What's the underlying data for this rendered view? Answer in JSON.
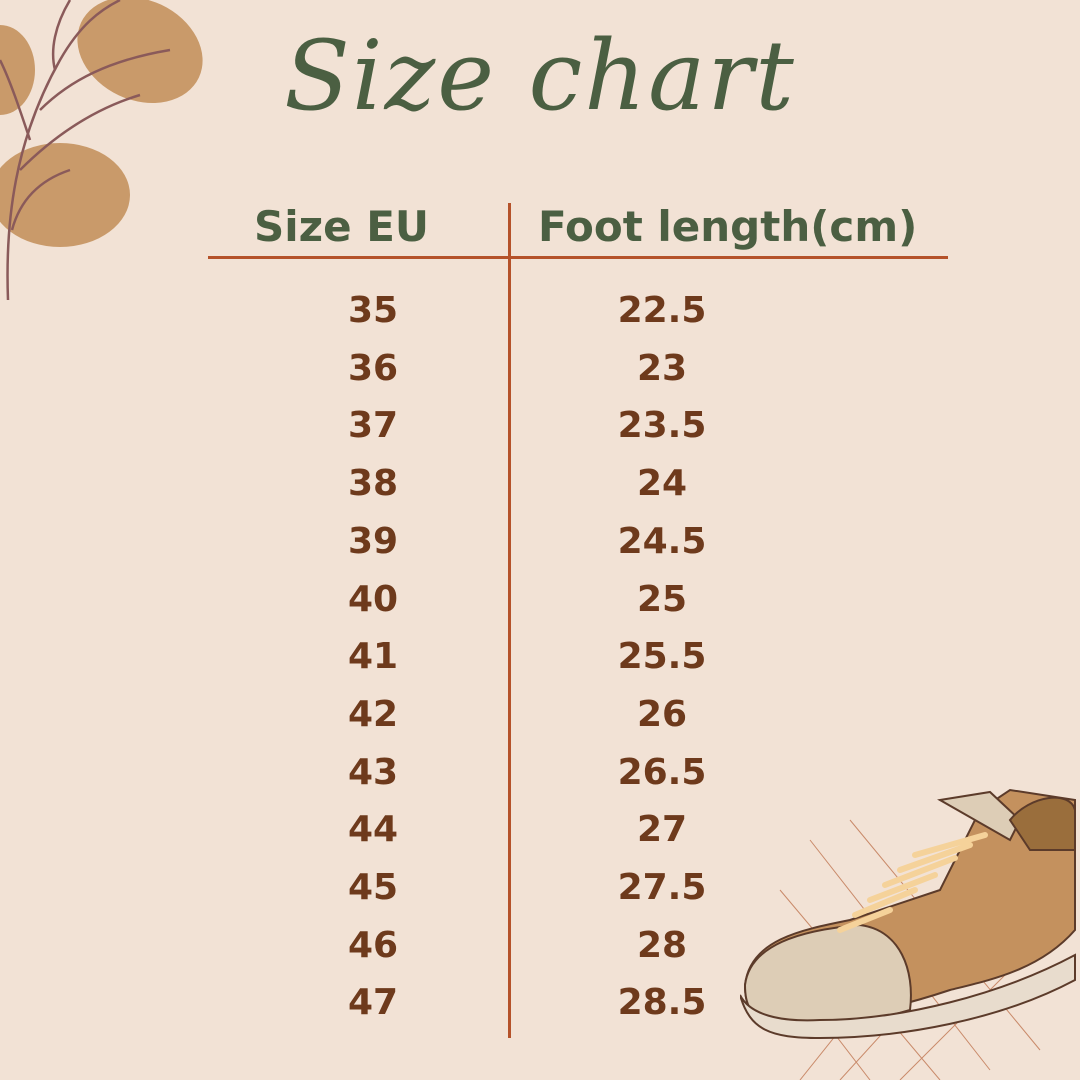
{
  "title": "Size chart",
  "headers": {
    "size": "Size EU",
    "length": "Foot length(cm)"
  },
  "colors": {
    "background": "#f2e2d5",
    "heading": "#4b5f42",
    "values": "#6e3a1c",
    "lines": "#b5522a"
  },
  "rows": [
    {
      "size": "35",
      "length": "22.5"
    },
    {
      "size": "36",
      "length": "23"
    },
    {
      "size": "37",
      "length": "23.5"
    },
    {
      "size": "38",
      "length": "24"
    },
    {
      "size": "39",
      "length": "24.5"
    },
    {
      "size": "40",
      "length": "25"
    },
    {
      "size": "41",
      "length": "25.5"
    },
    {
      "size": "42",
      "length": "26"
    },
    {
      "size": "43",
      "length": "26.5"
    },
    {
      "size": "44",
      "length": "27"
    },
    {
      "size": "45",
      "length": "27.5"
    },
    {
      "size": "46",
      "length": "28"
    },
    {
      "size": "47",
      "length": "28.5"
    }
  ],
  "decorations": [
    "leaf-branch-icon",
    "sneaker-icon"
  ]
}
